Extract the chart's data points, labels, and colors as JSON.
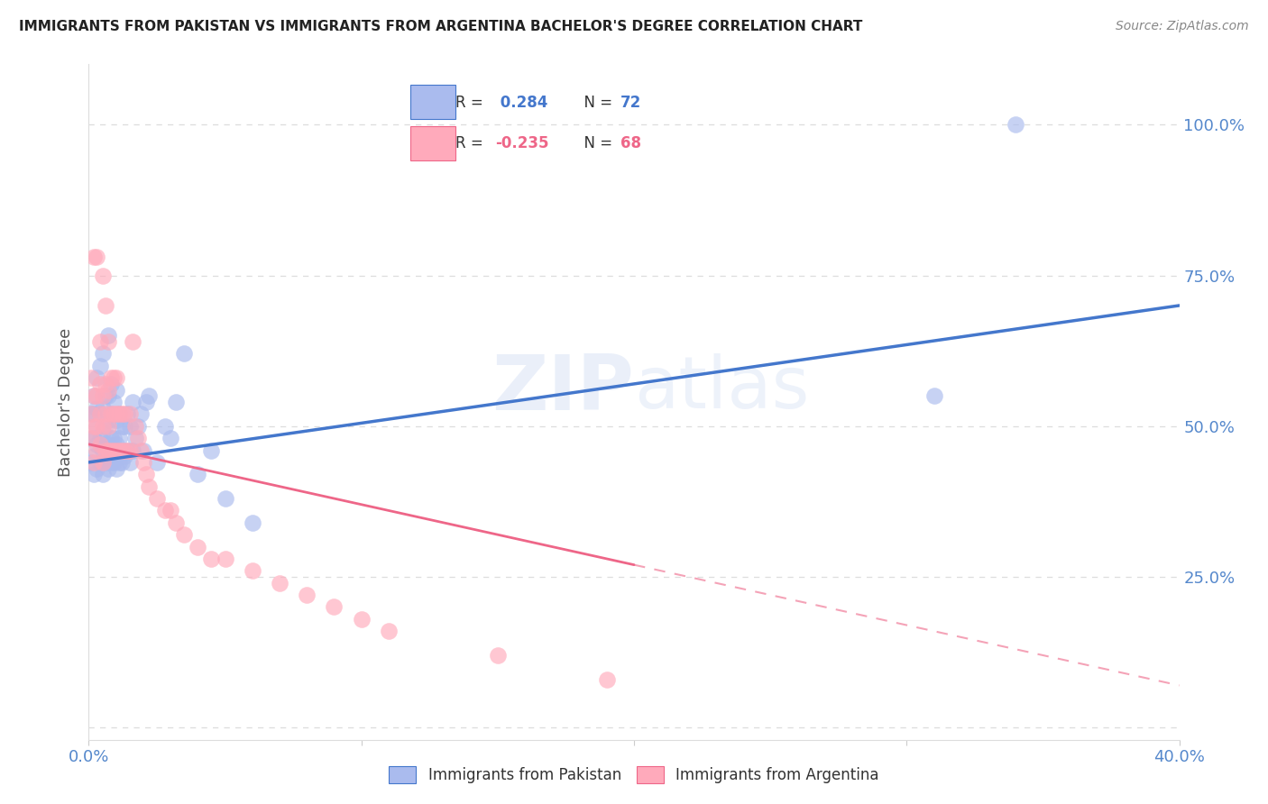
{
  "title": "IMMIGRANTS FROM PAKISTAN VS IMMIGRANTS FROM ARGENTINA BACHELOR'S DEGREE CORRELATION CHART",
  "source": "Source: ZipAtlas.com",
  "ylabel": "Bachelor's Degree",
  "watermark": "ZIPatlas",
  "pakistan_R": 0.284,
  "pakistan_N": 72,
  "argentina_R": -0.235,
  "argentina_N": 68,
  "pakistan_color": "#aabbee",
  "argentina_color": "#ffaabb",
  "pakistan_line_color": "#4477cc",
  "argentina_line_color": "#ee6688",
  "xlim": [
    0.0,
    0.4
  ],
  "ylim": [
    -0.02,
    1.1
  ],
  "ytick_color": "#5588cc",
  "xtick_color": "#5588cc",
  "pakistan_x": [
    0.001,
    0.001,
    0.001,
    0.002,
    0.002,
    0.002,
    0.002,
    0.002,
    0.003,
    0.003,
    0.003,
    0.003,
    0.003,
    0.004,
    0.004,
    0.004,
    0.004,
    0.005,
    0.005,
    0.005,
    0.005,
    0.005,
    0.006,
    0.006,
    0.006,
    0.006,
    0.007,
    0.007,
    0.007,
    0.007,
    0.007,
    0.008,
    0.008,
    0.008,
    0.008,
    0.009,
    0.009,
    0.009,
    0.01,
    0.01,
    0.01,
    0.01,
    0.011,
    0.011,
    0.011,
    0.012,
    0.012,
    0.013,
    0.013,
    0.014,
    0.014,
    0.015,
    0.015,
    0.016,
    0.016,
    0.017,
    0.018,
    0.019,
    0.02,
    0.021,
    0.022,
    0.025,
    0.028,
    0.03,
    0.032,
    0.035,
    0.04,
    0.045,
    0.05,
    0.06,
    0.31,
    0.34
  ],
  "pakistan_y": [
    0.44,
    0.48,
    0.52,
    0.42,
    0.45,
    0.48,
    0.52,
    0.55,
    0.43,
    0.47,
    0.5,
    0.53,
    0.58,
    0.44,
    0.48,
    0.52,
    0.6,
    0.42,
    0.46,
    0.49,
    0.53,
    0.62,
    0.44,
    0.47,
    0.5,
    0.55,
    0.43,
    0.47,
    0.51,
    0.55,
    0.65,
    0.44,
    0.48,
    0.52,
    0.57,
    0.44,
    0.48,
    0.54,
    0.43,
    0.47,
    0.51,
    0.56,
    0.44,
    0.48,
    0.52,
    0.44,
    0.5,
    0.45,
    0.5,
    0.46,
    0.52,
    0.44,
    0.5,
    0.46,
    0.54,
    0.48,
    0.5,
    0.52,
    0.46,
    0.54,
    0.55,
    0.44,
    0.5,
    0.48,
    0.54,
    0.62,
    0.42,
    0.46,
    0.38,
    0.34,
    0.55,
    1.0
  ],
  "argentina_x": [
    0.001,
    0.001,
    0.001,
    0.002,
    0.002,
    0.002,
    0.002,
    0.003,
    0.003,
    0.003,
    0.003,
    0.004,
    0.004,
    0.004,
    0.004,
    0.005,
    0.005,
    0.005,
    0.005,
    0.006,
    0.006,
    0.006,
    0.006,
    0.007,
    0.007,
    0.007,
    0.007,
    0.008,
    0.008,
    0.008,
    0.009,
    0.009,
    0.009,
    0.01,
    0.01,
    0.01,
    0.011,
    0.011,
    0.012,
    0.012,
    0.013,
    0.013,
    0.014,
    0.015,
    0.015,
    0.016,
    0.017,
    0.018,
    0.019,
    0.02,
    0.021,
    0.022,
    0.025,
    0.028,
    0.03,
    0.032,
    0.035,
    0.04,
    0.045,
    0.05,
    0.06,
    0.07,
    0.08,
    0.09,
    0.1,
    0.11,
    0.15,
    0.19
  ],
  "argentina_y": [
    0.48,
    0.52,
    0.58,
    0.44,
    0.5,
    0.55,
    0.78,
    0.46,
    0.5,
    0.55,
    0.78,
    0.47,
    0.52,
    0.57,
    0.64,
    0.44,
    0.5,
    0.55,
    0.75,
    0.46,
    0.52,
    0.57,
    0.7,
    0.46,
    0.5,
    0.56,
    0.64,
    0.46,
    0.52,
    0.58,
    0.46,
    0.52,
    0.58,
    0.46,
    0.52,
    0.58,
    0.46,
    0.52,
    0.46,
    0.52,
    0.46,
    0.52,
    0.46,
    0.46,
    0.52,
    0.64,
    0.5,
    0.48,
    0.46,
    0.44,
    0.42,
    0.4,
    0.38,
    0.36,
    0.36,
    0.34,
    0.32,
    0.3,
    0.28,
    0.28,
    0.26,
    0.24,
    0.22,
    0.2,
    0.18,
    0.16,
    0.12,
    0.08
  ]
}
